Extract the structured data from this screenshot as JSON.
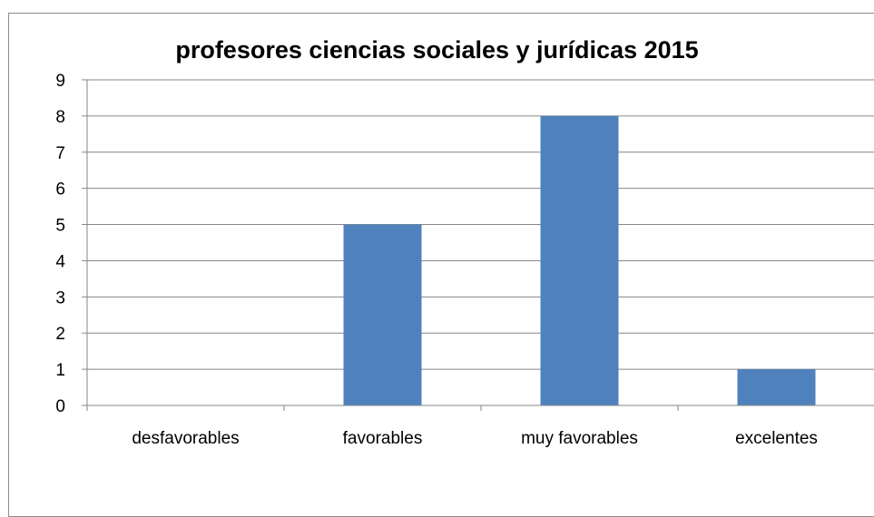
{
  "chart_data": {
    "type": "bar",
    "title": "profesores ciencias sociales y jurídicas 2015",
    "categories": [
      "desfavorables",
      "favorables",
      "muy favorables",
      "excelentes"
    ],
    "values": [
      0,
      5,
      8,
      1
    ],
    "xlabel": "",
    "ylabel": "",
    "ylim": [
      0,
      9
    ],
    "yticks": [
      "0",
      "1",
      "2",
      "3",
      "4",
      "5",
      "6",
      "7",
      "8",
      "9"
    ],
    "grid": true,
    "legend": "none",
    "bar_color": "#4F81BD"
  }
}
